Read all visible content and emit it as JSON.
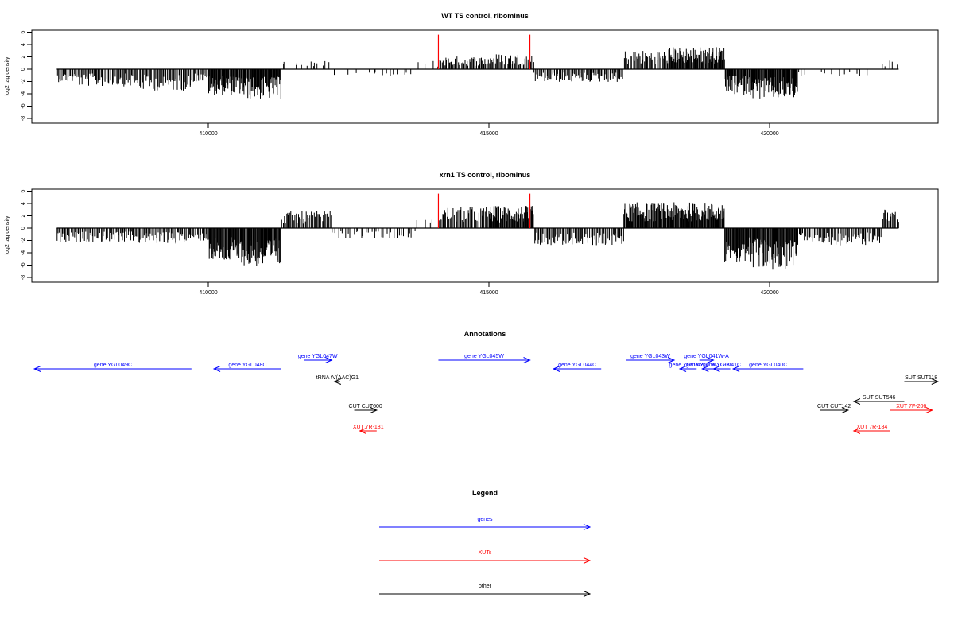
{
  "chart_data": [
    {
      "type": "bar",
      "title": "WT TS control, ribominus",
      "ylabel": "log2 tag density",
      "xlabel": "",
      "xlim": [
        407000,
        423000
      ],
      "ylim": [
        -8,
        6
      ],
      "x_ticks": [
        410000,
        415000,
        420000
      ],
      "y_ticks": [
        -8,
        -6,
        -4,
        -2,
        0,
        2,
        4,
        6
      ],
      "highlight_x": [
        414100,
        415730
      ],
      "highlight_color": "#ff0000",
      "mark_color": "#000000",
      "region_levels": [
        {
          "x": [
            407300,
            407700
          ],
          "y": -1.5
        },
        {
          "x": [
            407700,
            408700
          ],
          "y": -2.0
        },
        {
          "x": [
            408700,
            409700
          ],
          "y": -2.5
        },
        {
          "x": [
            409700,
            410000
          ],
          "y": -1.5
        },
        {
          "x": [
            410000,
            410600
          ],
          "y": -3.0
        },
        {
          "x": [
            410600,
            411300
          ],
          "y": -3.5
        },
        {
          "x": [
            411300,
            412200
          ],
          "y": 1.0
        },
        {
          "x": [
            412200,
            413700
          ],
          "y": -0.8
        },
        {
          "x": [
            413700,
            414100
          ],
          "y": 1.0
        },
        {
          "x": [
            414100,
            415000
          ],
          "y": 1.5
        },
        {
          "x": [
            415000,
            415800
          ],
          "y": 1.8
        },
        {
          "x": [
            415800,
            417400
          ],
          "y": -1.5
        },
        {
          "x": [
            417400,
            418200
          ],
          "y": 2.2
        },
        {
          "x": [
            418200,
            419200
          ],
          "y": 2.6
        },
        {
          "x": [
            419200,
            419700
          ],
          "y": -3.0
        },
        {
          "x": [
            419700,
            420500
          ],
          "y": -3.5
        },
        {
          "x": [
            420500,
            422000
          ],
          "y": -0.8
        },
        {
          "x": [
            422000,
            422300
          ],
          "y": 1.0
        }
      ]
    },
    {
      "type": "bar",
      "title": "xrn1 TS control, ribominus",
      "ylabel": "log2 tag density",
      "xlabel": "",
      "xlim": [
        407000,
        423000
      ],
      "ylim": [
        -8,
        6
      ],
      "x_ticks": [
        410000,
        415000,
        420000
      ],
      "y_ticks": [
        -8,
        -6,
        -4,
        -2,
        0,
        2,
        4,
        6
      ],
      "highlight_x": [
        414100,
        415730
      ],
      "highlight_color": "#ff0000",
      "mark_color": "#000000",
      "region_levels": [
        {
          "x": [
            407300,
            407700
          ],
          "y": -1.8
        },
        {
          "x": [
            407700,
            408700
          ],
          "y": -1.6
        },
        {
          "x": [
            408700,
            409700
          ],
          "y": -1.8
        },
        {
          "x": [
            409700,
            410000
          ],
          "y": -1.5
        },
        {
          "x": [
            410000,
            410600
          ],
          "y": -4.0
        },
        {
          "x": [
            410600,
            411300
          ],
          "y": -4.5
        },
        {
          "x": [
            411300,
            412200
          ],
          "y": 2.0
        },
        {
          "x": [
            412200,
            413700
          ],
          "y": -1.2
        },
        {
          "x": [
            413700,
            414100
          ],
          "y": 1.0
        },
        {
          "x": [
            414100,
            415000
          ],
          "y": 2.5
        },
        {
          "x": [
            415000,
            415800
          ],
          "y": 2.6
        },
        {
          "x": [
            415800,
            417400
          ],
          "y": -2.0
        },
        {
          "x": [
            417400,
            418200
          ],
          "y": 3.0
        },
        {
          "x": [
            418200,
            419200
          ],
          "y": 3.0
        },
        {
          "x": [
            419200,
            419700
          ],
          "y": -4.0
        },
        {
          "x": [
            419700,
            420500
          ],
          "y": -4.8
        },
        {
          "x": [
            420500,
            422000
          ],
          "y": -2.0
        },
        {
          "x": [
            422000,
            422300
          ],
          "y": 2.2
        }
      ]
    }
  ],
  "annotations": {
    "title": "Annotations",
    "genome_range": [
      407000,
      423000
    ],
    "features": [
      {
        "label": "gene YGL049C",
        "start": 406900,
        "end": 409700,
        "strand": "-",
        "category": "genes",
        "row": 1
      },
      {
        "label": "gene YGL048C",
        "start": 410100,
        "end": 411300,
        "strand": "-",
        "category": "genes",
        "row": 1
      },
      {
        "label": "gene YGL047W",
        "start": 411700,
        "end": 412200,
        "strand": "+",
        "category": "genes",
        "row": 0
      },
      {
        "label": "tRNA tV(AAC)G1",
        "start": 412250,
        "end": 412350,
        "strand": "-",
        "category": "other",
        "row": 2
      },
      {
        "label": "CUT CUT600",
        "start": 412600,
        "end": 413000,
        "strand": "+",
        "category": "other",
        "row": 4
      },
      {
        "label": "XUT 7R-181",
        "start": 412700,
        "end": 413000,
        "strand": "-",
        "category": "XUTs",
        "row": 5
      },
      {
        "label": "gene YGL045W",
        "start": 414100,
        "end": 415730,
        "strand": "+",
        "category": "genes",
        "row": 0
      },
      {
        "label": "gene YGL044C",
        "start": 416150,
        "end": 417000,
        "strand": "-",
        "category": "genes",
        "row": 1
      },
      {
        "label": "gene YGL043W",
        "start": 417450,
        "end": 418300,
        "strand": "+",
        "category": "genes",
        "row": 0
      },
      {
        "label": "gene YGL042C",
        "start": 418400,
        "end": 418700,
        "strand": "-",
        "category": "genes",
        "row": 1
      },
      {
        "label": "gene YGL041W-A",
        "start": 418750,
        "end": 419000,
        "strand": "+",
        "category": "genes",
        "row": 0
      },
      {
        "label": "gene YGL041C-B",
        "start": 418800,
        "end": 419000,
        "strand": "-",
        "category": "genes",
        "row": 1
      },
      {
        "label": "gene YGL041C",
        "start": 419000,
        "end": 419300,
        "strand": "-",
        "category": "genes",
        "row": 1
      },
      {
        "label": "gene YGL040C",
        "start": 419350,
        "end": 420600,
        "strand": "-",
        "category": "genes",
        "row": 1
      },
      {
        "label": "CUT CUT142",
        "start": 420900,
        "end": 421400,
        "strand": "+",
        "category": "other",
        "row": 4
      },
      {
        "label": "SUT SUT546",
        "start": 421500,
        "end": 422400,
        "strand": "-",
        "category": "other",
        "row": 3
      },
      {
        "label": "SUT SUT118",
        "start": 422400,
        "end": 423000,
        "strand": "+",
        "category": "other",
        "row": 2
      },
      {
        "label": "XUT 7R-184",
        "start": 421500,
        "end": 422150,
        "strand": "-",
        "category": "XUTs",
        "row": 5
      },
      {
        "label": "XUT 7F-206",
        "start": 422150,
        "end": 422900,
        "strand": "+",
        "category": "XUTs",
        "row": 4
      }
    ]
  },
  "legend": {
    "title": "Legend",
    "items": [
      {
        "label": "genes",
        "color": "#0000ff"
      },
      {
        "label": "XUTs",
        "color": "#ff0000"
      },
      {
        "label": "other",
        "color": "#000000"
      }
    ]
  },
  "colors": {
    "genes": "#0000ff",
    "XUTs": "#ff0000",
    "other": "#000000"
  }
}
